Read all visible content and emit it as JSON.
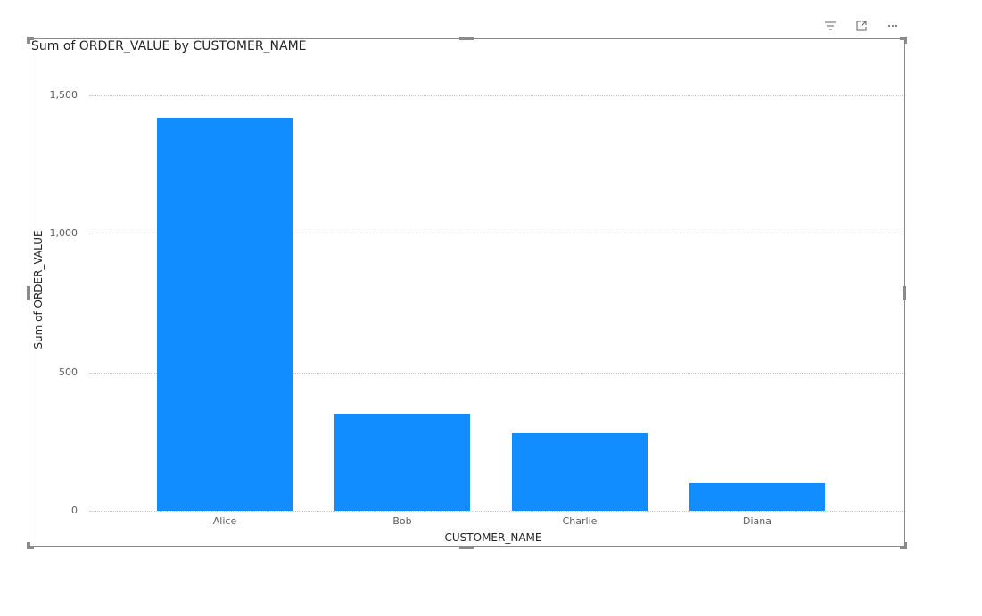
{
  "visual": {
    "toolbar": {
      "filter_icon": "filter-lines-icon",
      "focus_icon": "focus-mode-icon",
      "more_icon": "more-options-icon"
    }
  },
  "colors": {
    "bar": "#118dff",
    "frame": "#8a8a8a",
    "grid": "#c8c8c8",
    "tick_text": "#605e5c",
    "title_text": "#252423"
  },
  "chart_data": {
    "type": "bar",
    "title": "Sum of ORDER_VALUE by CUSTOMER_NAME",
    "xlabel": "CUSTOMER_NAME",
    "ylabel": "Sum of ORDER_VALUE",
    "categories": [
      "Alice",
      "Bob",
      "Charlie",
      "Diana"
    ],
    "values": [
      1420,
      350,
      280,
      100
    ],
    "ylim": [
      0,
      1500
    ],
    "yticks": [
      0,
      500,
      1000,
      1500
    ],
    "ytick_labels": [
      "0",
      "500",
      "1,000",
      "1,500"
    ],
    "grid": true,
    "legend": "none"
  }
}
